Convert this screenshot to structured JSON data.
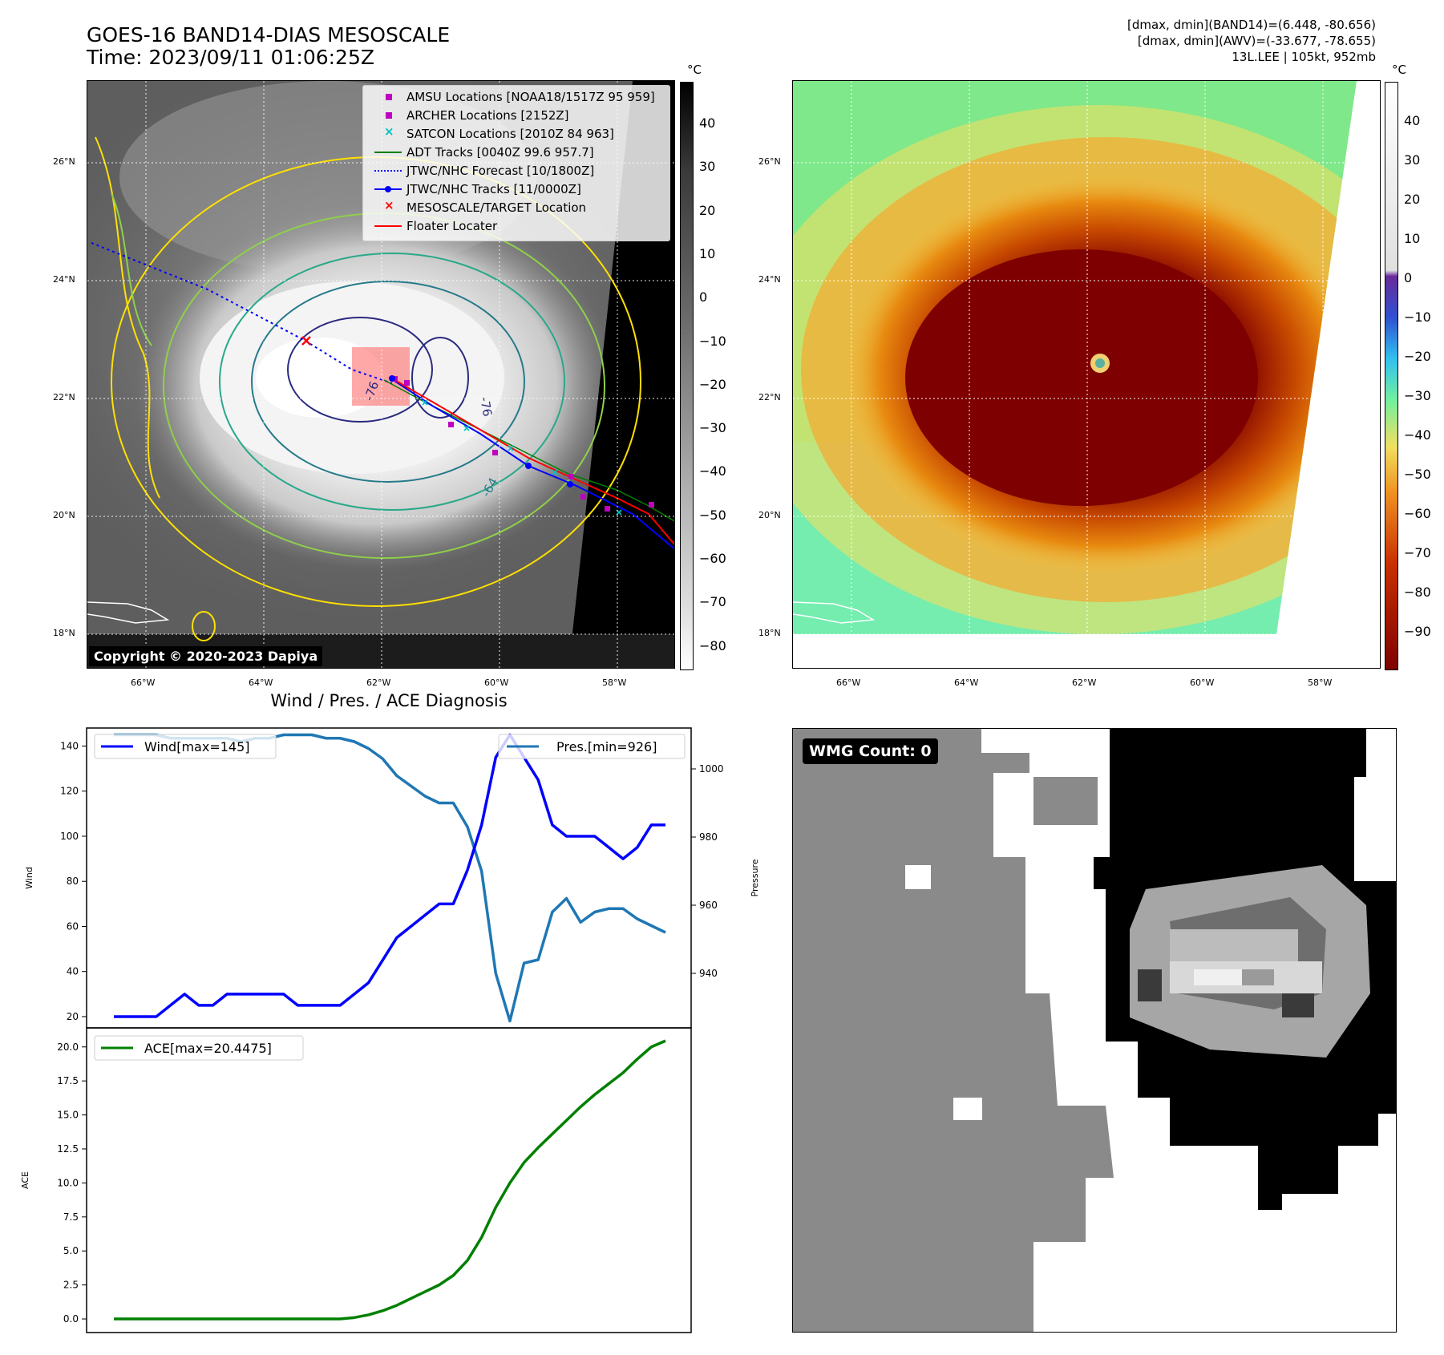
{
  "header": {
    "title_line1": "GOES-16 BAND14-DIAS MESOSCALE",
    "title_line2": "Time: 2023/09/11 01:06:25Z",
    "info_line1": "[dmax, dmin](BAND14)=(6.448, -80.656)",
    "info_line2": "[dmax, dmin](AWV)=(-33.677, -78.655)",
    "info_line3": "13L.LEE | 105kt, 952mb"
  },
  "maps": {
    "lat_labels": [
      "26°N",
      "24°N",
      "22°N",
      "20°N",
      "18°N"
    ],
    "lon_labels": [
      "66°W",
      "64°W",
      "62°W",
      "60°W",
      "58°W"
    ],
    "copyright": "Copyright © 2020-2023 Dapiya",
    "contour_labels": [
      "-76",
      "-76",
      "-64"
    ]
  },
  "legend": {
    "items": [
      {
        "label": "AMSU Locations [NOAA18/1517Z 95 959]",
        "color": "#c000c0",
        "symbol": "square"
      },
      {
        "label": "ARCHER Locations [2152Z]",
        "color": "#c000c0",
        "symbol": "square"
      },
      {
        "label": "SATCON Locations [2010Z 84 963]",
        "color": "#00c0c0",
        "symbol": "x"
      },
      {
        "label": "ADT Tracks [0040Z 99.6 957.7]",
        "color": "#008000",
        "symbol": "line"
      },
      {
        "label": "JTWC/NHC Forecast [10/1800Z]",
        "color": "#0000ff",
        "symbol": "dotted"
      },
      {
        "label": "JTWC/NHC Tracks [11/0000Z]",
        "color": "#0000ff",
        "symbol": "line-dot"
      },
      {
        "label": "MESOSCALE/TARGET Location",
        "color": "#ff0000",
        "symbol": "x"
      },
      {
        "label": "Floater Locater",
        "color": "#ff0000",
        "symbol": "line"
      }
    ]
  },
  "colorbars": {
    "unit": "°C",
    "gray_ticks": [
      "40",
      "30",
      "20",
      "10",
      "0",
      "−10",
      "−20",
      "−30",
      "−40",
      "−50",
      "−60",
      "−70",
      "−80"
    ],
    "color_ticks": [
      "40",
      "30",
      "20",
      "10",
      "0",
      "−10",
      "−20",
      "−30",
      "−40",
      "−50",
      "−60",
      "−70",
      "−80",
      "−90"
    ]
  },
  "wmg": {
    "label": "WMG Count: 0"
  },
  "chart_data": [
    {
      "type": "line",
      "title": "Wind / Pres. / ACE Diagnosis",
      "ylabel": "Wind",
      "ylabel_right": "Pressure",
      "ylim": [
        15,
        148
      ],
      "ylim_right": [
        924,
        1012
      ],
      "yticks": [
        20,
        40,
        60,
        80,
        100,
        120,
        140
      ],
      "yticks_right": [
        940,
        960,
        980,
        1000
      ],
      "series": [
        {
          "name": "Wind[max=145]",
          "color": "#0000ff",
          "values": [
            20,
            20,
            20,
            20,
            25,
            30,
            25,
            25,
            30,
            30,
            30,
            30,
            30,
            25,
            25,
            25,
            25,
            30,
            35,
            45,
            55,
            60,
            65,
            70,
            70,
            85,
            105,
            135,
            145,
            135,
            125,
            105,
            100,
            100,
            100,
            95,
            90,
            95,
            105,
            105
          ]
        },
        {
          "name": "Pres.[min=926]",
          "color": "#1f77b4",
          "values": [
            1010,
            1010,
            1010,
            1010,
            1009,
            1009,
            1009,
            1009,
            1009,
            1008,
            1009,
            1009,
            1010,
            1010,
            1010,
            1009,
            1009,
            1008,
            1006,
            1003,
            998,
            995,
            992,
            990,
            990,
            983,
            970,
            940,
            926,
            943,
            944,
            958,
            962,
            955,
            958,
            959,
            959,
            956,
            954,
            952
          ]
        }
      ]
    },
    {
      "type": "line",
      "ylabel": "ACE",
      "ylim": [
        -1.0,
        21.4
      ],
      "yticks": [
        "0.0",
        "2.5",
        "5.0",
        "7.5",
        "10.0",
        "12.5",
        "15.0",
        "17.5",
        "20.0"
      ],
      "series": [
        {
          "name": "ACE[max=20.4475]",
          "color": "#008000",
          "values": [
            0,
            0,
            0,
            0,
            0,
            0,
            0,
            0,
            0,
            0,
            0,
            0,
            0,
            0,
            0,
            0,
            0,
            0.1,
            0.3,
            0.6,
            1.0,
            1.5,
            2.0,
            2.5,
            3.2,
            4.3,
            6.0,
            8.2,
            10.0,
            11.5,
            12.6,
            13.6,
            14.6,
            15.6,
            16.5,
            17.3,
            18.1,
            19.1,
            20.0,
            20.45
          ]
        }
      ]
    }
  ]
}
